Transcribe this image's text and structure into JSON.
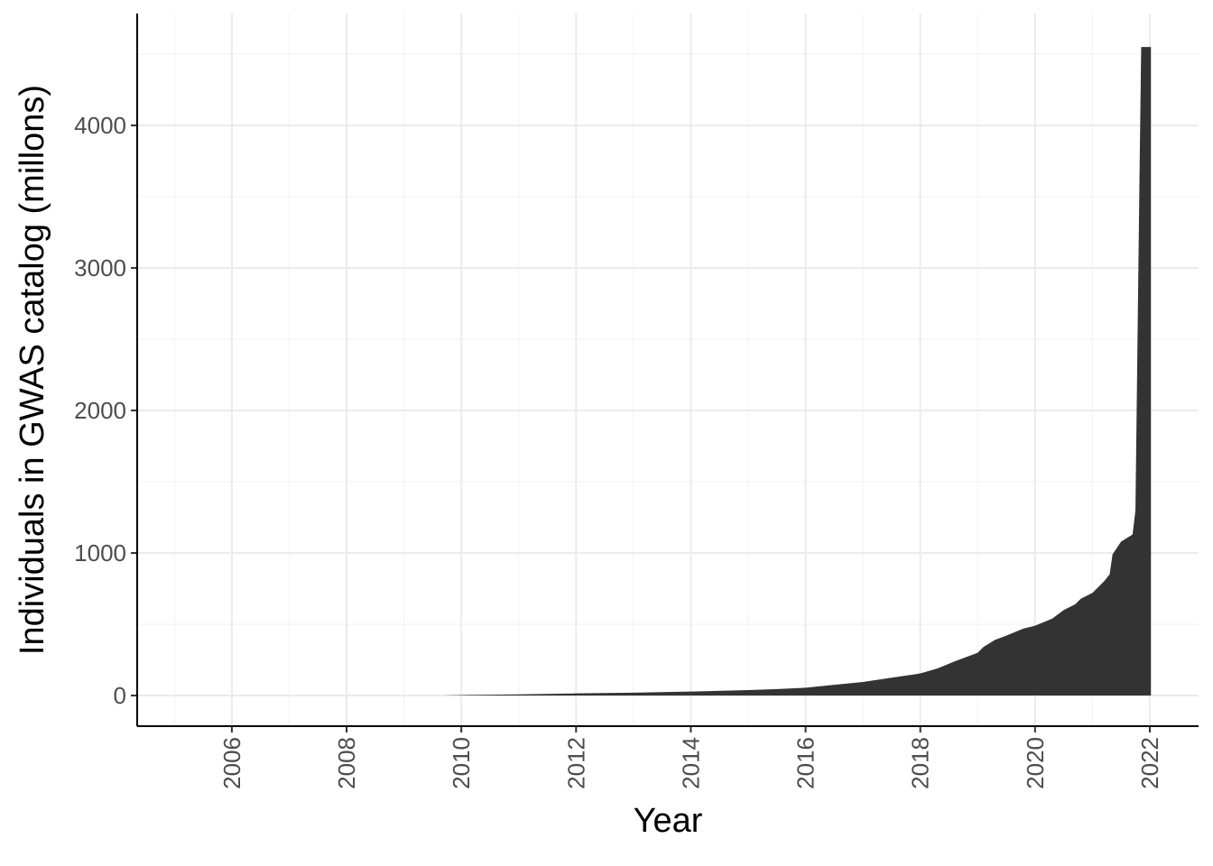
{
  "chart_data": {
    "type": "area",
    "x_label": "Year",
    "y_label": "Individuals in GWAS catalog (millons)",
    "x": [
      2009.65,
      2010,
      2011,
      2012,
      2013,
      2014,
      2015,
      2015.5,
      2016,
      2016.5,
      2017,
      2017.5,
      2018,
      2018.3,
      2018.6,
      2019,
      2019.1,
      2019.3,
      2019.5,
      2019.8,
      2020,
      2020.3,
      2020.5,
      2020.7,
      2020.8,
      2021,
      2021.2,
      2021.3,
      2021.35,
      2021.5,
      2021.7,
      2021.75,
      2021.82,
      2021.85,
      2022.02
    ],
    "values": [
      0,
      3,
      8,
      15,
      20,
      28,
      38,
      45,
      55,
      75,
      95,
      125,
      155,
      190,
      240,
      300,
      340,
      390,
      420,
      470,
      490,
      540,
      600,
      640,
      680,
      720,
      800,
      850,
      990,
      1080,
      1130,
      1300,
      3620,
      4550,
      4550
    ],
    "color": "#333333",
    "xlim": [
      2004.35,
      2022.85
    ],
    "ylim": [
      -215,
      4785
    ],
    "xticks": [
      2006,
      2008,
      2010,
      2012,
      2014,
      2016,
      2018,
      2020,
      2022
    ],
    "yticks": [
      0,
      1000,
      2000,
      3000,
      4000
    ],
    "x_minor_grid": [
      2005,
      2007,
      2009,
      2011,
      2013,
      2015,
      2017,
      2019,
      2021
    ],
    "y_minor_grid": [
      500,
      1500,
      2500,
      3500,
      4500
    ],
    "grid": true
  }
}
